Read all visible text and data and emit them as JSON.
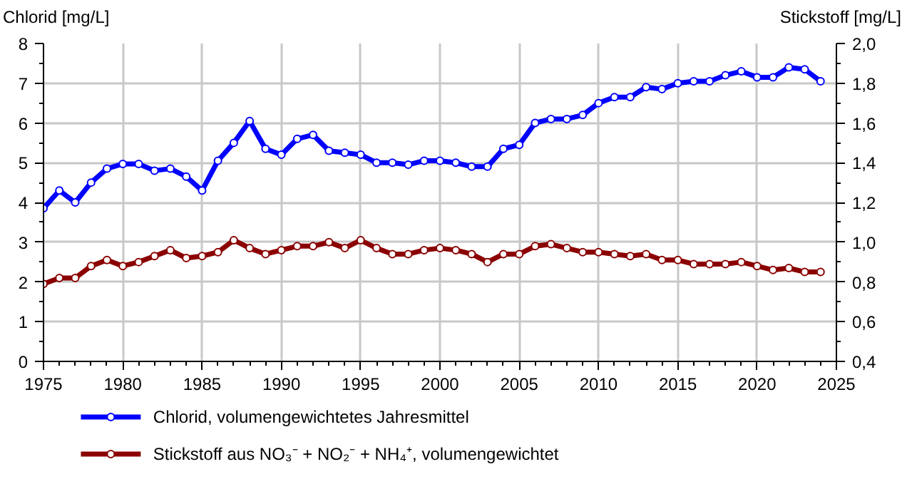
{
  "chart_data": {
    "type": "line",
    "x": [
      1975,
      1976,
      1977,
      1978,
      1979,
      1980,
      1981,
      1982,
      1983,
      1984,
      1985,
      1986,
      1987,
      1988,
      1989,
      1990,
      1991,
      1992,
      1993,
      1994,
      1995,
      1996,
      1997,
      1998,
      1999,
      2000,
      2001,
      2002,
      2003,
      2004,
      2005,
      2006,
      2007,
      2008,
      2009,
      2010,
      2011,
      2012,
      2013,
      2014,
      2015,
      2016,
      2017,
      2018,
      2019,
      2020,
      2021,
      2022,
      2023,
      2024
    ],
    "series": [
      {
        "name": "Chlorid, volumengewichtetes Jahresmittel",
        "color": "#0000ff",
        "values": [
          3.85,
          4.3,
          4.0,
          4.5,
          4.85,
          4.97,
          4.97,
          4.8,
          4.85,
          4.65,
          4.3,
          5.05,
          5.5,
          6.05,
          5.35,
          5.2,
          5.6,
          5.7,
          5.3,
          5.25,
          5.2,
          5.0,
          5.0,
          4.95,
          5.05,
          5.05,
          5.0,
          4.9,
          4.9,
          5.35,
          5.45,
          6.0,
          6.1,
          6.1,
          6.2,
          6.5,
          6.65,
          6.65,
          6.9,
          6.85,
          7.0,
          7.05,
          7.05,
          7.2,
          7.3,
          7.15,
          7.15,
          7.4,
          7.35,
          7.05
        ]
      },
      {
        "name": "Stickstoff aus NO₃⁻ + NO₂⁻ + NH₄⁺,  volumengewichtet",
        "color": "#8b0000",
        "axis": "y2",
        "values": [
          0.79,
          0.82,
          0.82,
          0.88,
          0.91,
          0.88,
          0.9,
          0.93,
          0.96,
          0.92,
          0.93,
          0.95,
          1.01,
          0.97,
          0.94,
          0.96,
          0.98,
          0.98,
          1.0,
          0.97,
          1.01,
          0.97,
          0.94,
          0.94,
          0.96,
          0.97,
          0.96,
          0.94,
          0.9,
          0.94,
          0.94,
          0.98,
          0.99,
          0.97,
          0.95,
          0.95,
          0.94,
          0.93,
          0.94,
          0.91,
          0.91,
          0.89,
          0.89,
          0.89,
          0.9,
          0.88,
          0.86,
          0.87,
          0.85,
          0.85
        ]
      }
    ],
    "ylabel": "Chlorid [mg/L]",
    "y2label": "Stickstoff [mg/L]",
    "xlim": [
      1975,
      2025
    ],
    "xticks": [
      1975,
      1980,
      1985,
      1990,
      1995,
      2000,
      2005,
      2010,
      2015,
      2020,
      2025
    ],
    "ylim": [
      0,
      8
    ],
    "yticks": [
      0,
      1,
      2,
      3,
      4,
      5,
      6,
      7,
      8
    ],
    "y2lim": [
      0.4,
      2.0
    ],
    "y2ticks": [
      {
        "value": 0.4,
        "label": "0,4"
      },
      {
        "value": 0.6,
        "label": "0,6"
      },
      {
        "value": 0.8,
        "label": "0,8"
      },
      {
        "value": 1.0,
        "label": "1,0"
      },
      {
        "value": 1.2,
        "label": "1,2"
      },
      {
        "value": 1.4,
        "label": "1,4"
      },
      {
        "value": 1.6,
        "label": "1,6"
      },
      {
        "value": 1.8,
        "label": "1,8"
      },
      {
        "value": 2.0,
        "label": "2,0"
      }
    ],
    "grid": true,
    "legend": "bottom",
    "marker": "circle",
    "line_style": "solid"
  }
}
